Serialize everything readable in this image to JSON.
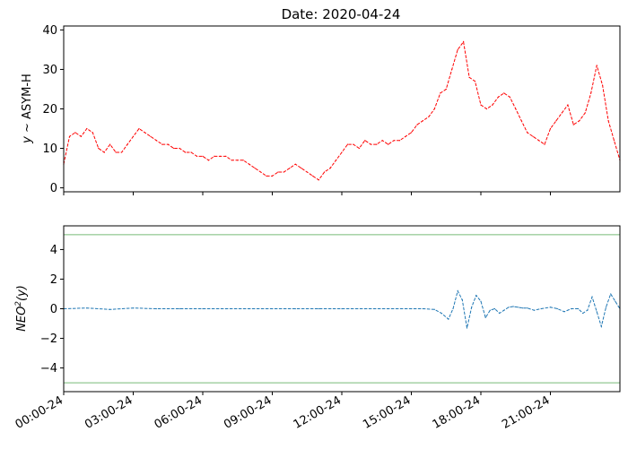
{
  "chart_data": [
    {
      "type": "line",
      "title": "Date: 2020-04-24",
      "ylabel": "$y\\sim$ASYM-H",
      "ylabel_parts": {
        "italic": "y",
        "rest": " ~ ASYM-H"
      },
      "x_tick_labels": [
        "00:00-24",
        "03:00-24",
        "06:00-24",
        "09:00-24",
        "12:00-24",
        "15:00-24",
        "18:00-24",
        "21:00-24"
      ],
      "x_tick_hours": [
        0,
        3,
        6,
        9,
        12,
        15,
        18,
        21
      ],
      "xlim_hours": [
        0,
        24
      ],
      "ylim": [
        -1,
        41
      ],
      "y_ticks": [
        0,
        10,
        20,
        30,
        40
      ],
      "y_tick_labels": [
        "0",
        "10",
        "20",
        "30",
        "40"
      ],
      "grid": false,
      "series": [
        {
          "color": "#ff0000",
          "linestyle": "dashed",
          "x_hours": [
            0.0,
            0.25,
            0.5,
            0.75,
            1.0,
            1.25,
            1.5,
            1.75,
            2.0,
            2.25,
            2.5,
            2.75,
            3.0,
            3.25,
            3.5,
            3.75,
            4.0,
            4.25,
            4.5,
            4.75,
            5.0,
            5.25,
            5.5,
            5.75,
            6.0,
            6.25,
            6.5,
            6.75,
            7.0,
            7.25,
            7.5,
            7.75,
            8.0,
            8.25,
            8.5,
            8.75,
            9.0,
            9.25,
            9.5,
            9.75,
            10.0,
            10.25,
            10.5,
            10.75,
            11.0,
            11.25,
            11.5,
            11.75,
            12.0,
            12.25,
            12.5,
            12.75,
            13.0,
            13.25,
            13.5,
            13.75,
            14.0,
            14.25,
            14.5,
            14.75,
            15.0,
            15.25,
            15.5,
            15.75,
            16.0,
            16.25,
            16.5,
            16.75,
            17.0,
            17.25,
            17.5,
            17.75,
            18.0,
            18.25,
            18.5,
            18.75,
            19.0,
            19.25,
            19.5,
            19.75,
            20.0,
            20.25,
            20.5,
            20.75,
            21.0,
            21.25,
            21.5,
            21.75,
            22.0,
            22.25,
            22.5,
            22.75,
            23.0,
            23.25,
            23.5,
            23.75,
            24.0
          ],
          "values": [
            6,
            13,
            14,
            13,
            15,
            14,
            10,
            9,
            11,
            9,
            9,
            11,
            13,
            15,
            14,
            13,
            12,
            11,
            11,
            10,
            10,
            9,
            9,
            8,
            8,
            7,
            8,
            8,
            8,
            7,
            7,
            7,
            6,
            5,
            4,
            3,
            3,
            4,
            4,
            5,
            6,
            5,
            4,
            3,
            2,
            4,
            5,
            7,
            9,
            11,
            11,
            10,
            12,
            11,
            11,
            12,
            11,
            12,
            12,
            13,
            14,
            16,
            17,
            18,
            20,
            24,
            25,
            30,
            35,
            37,
            28,
            27,
            21,
            20,
            21,
            23,
            24,
            23,
            20,
            17,
            14,
            13,
            12,
            11,
            15,
            17,
            19,
            21,
            16,
            17,
            19,
            24,
            31,
            26,
            17,
            12,
            7
          ]
        }
      ]
    },
    {
      "type": "line",
      "ylabel": "$NEO^2(y)$",
      "ylabel_parts": {
        "base": "NEO",
        "sup": "2",
        "rest": "(y)"
      },
      "x_tick_labels": [
        "00:00-24",
        "03:00-24",
        "06:00-24",
        "09:00-24",
        "12:00-24",
        "15:00-24",
        "18:00-24",
        "21:00-24"
      ],
      "x_tick_hours": [
        0,
        3,
        6,
        9,
        12,
        15,
        18,
        21
      ],
      "xlim_hours": [
        0,
        24
      ],
      "ylim": [
        -5.6,
        5.6
      ],
      "y_ticks": [
        -4,
        -2,
        0,
        2,
        4
      ],
      "y_tick_labels": [
        "−4",
        "−2",
        "0",
        "2",
        "4"
      ],
      "grid": false,
      "hlines": [
        {
          "y": 5,
          "color": "#77bb77"
        },
        {
          "y": -5,
          "color": "#77bb77"
        }
      ],
      "series": [
        {
          "color": "#1f77b4",
          "linestyle": "dashed",
          "x_hours": [
            0.0,
            1.0,
            2.0,
            3.0,
            4.0,
            5.0,
            6.0,
            7.0,
            8.0,
            9.0,
            10.0,
            11.0,
            12.0,
            13.0,
            14.0,
            15.0,
            15.5,
            16.0,
            16.3,
            16.6,
            16.8,
            17.0,
            17.2,
            17.4,
            17.6,
            17.8,
            18.0,
            18.2,
            18.4,
            18.6,
            18.8,
            19.0,
            19.2,
            19.4,
            19.6,
            19.8,
            20.0,
            20.3,
            20.6,
            21.0,
            21.3,
            21.6,
            21.9,
            22.2,
            22.4,
            22.6,
            22.8,
            23.0,
            23.2,
            23.4,
            23.6,
            23.8,
            24.0
          ],
          "values": [
            0.0,
            0.05,
            -0.05,
            0.05,
            0.0,
            0.0,
            0.0,
            0.0,
            0.0,
            0.0,
            0.0,
            0.0,
            0.0,
            0.0,
            0.0,
            0.0,
            0.0,
            -0.05,
            -0.3,
            -0.7,
            0.0,
            1.2,
            0.6,
            -1.3,
            0.1,
            0.9,
            0.5,
            -0.6,
            -0.1,
            0.0,
            -0.3,
            -0.1,
            0.1,
            0.15,
            0.1,
            0.05,
            0.05,
            -0.1,
            0.0,
            0.1,
            0.0,
            -0.2,
            0.0,
            0.0,
            -0.3,
            -0.1,
            0.8,
            -0.2,
            -1.2,
            0.1,
            1.0,
            0.5,
            0.0
          ]
        }
      ]
    }
  ]
}
